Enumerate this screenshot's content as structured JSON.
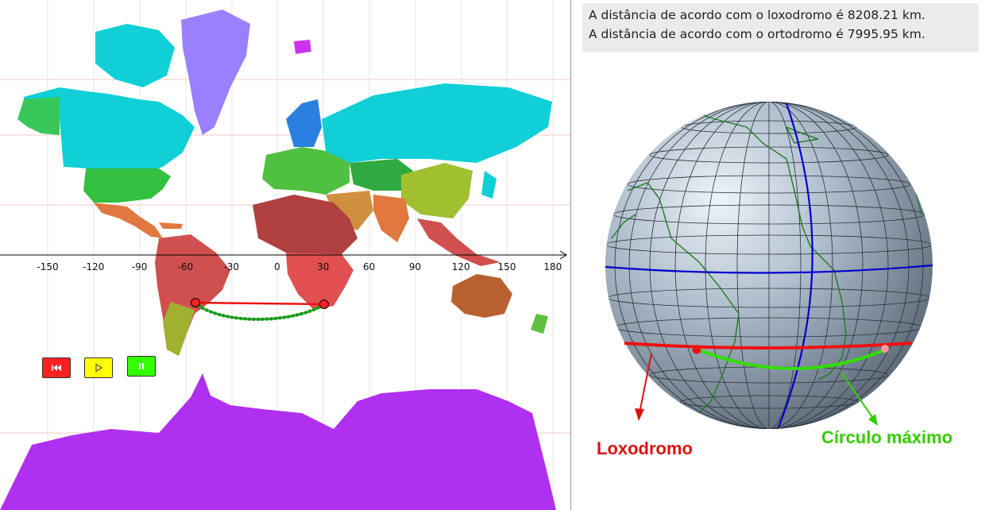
{
  "info": {
    "line1": "A distância de acordo com o loxodromo é 8208.21 km.",
    "line2": "A distância de acordo com o ortodromo é 7995.95 km."
  },
  "axis": {
    "ticks": [
      "-150",
      "-120",
      "-90",
      "-60",
      "-30",
      "0",
      "30",
      "60",
      "90",
      "120",
      "150",
      "180"
    ]
  },
  "controls": {
    "rewind": {
      "icon": "rewind-icon",
      "color": "#ff2020"
    },
    "play": {
      "icon": "play-icon",
      "color": "#ffff00"
    },
    "pause": {
      "icon": "pause-icon",
      "color": "#33ff00"
    }
  },
  "globe": {
    "loxodrome_label": "Loxodromo",
    "great_circle_label": "Círculo máximo"
  },
  "colors": {
    "loxodrome": "#ee1111",
    "great_circle": "#33dd00",
    "map_great_circle": "#1a9a1a",
    "meridian_equator": "#0000cc",
    "coastline": "#1f7a1f",
    "antarctica": "#b030f0",
    "greenland": "#9a80ff"
  }
}
